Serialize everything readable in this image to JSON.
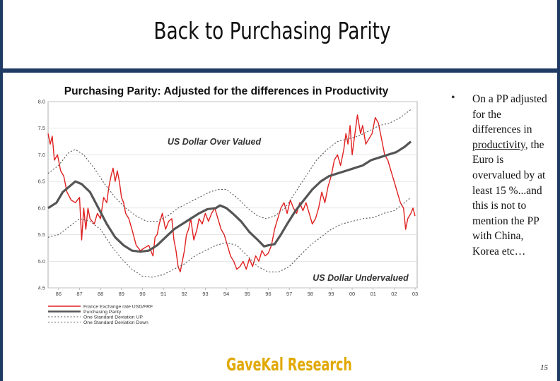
{
  "slide": {
    "title": "Back to Purchasing Parity",
    "bullet": "On a PP adjusted for the differences in productivity, the Euro is overvalued by at least 15 %...and this is not to mention the PP with China, Korea etc…",
    "bullet_underlined": "productivity,",
    "bullet_before": "On a PP adjusted for the differences in ",
    "bullet_after": " the Euro is overvalued by at least 15 %...and this is not to mention the PP with China, Korea etc…",
    "brand": "GaveKal Research",
    "page_number": "15"
  },
  "chart_data": {
    "type": "line",
    "title": "Purchasing Parity: Adjusted for the differences in  Productivity",
    "annotations": [
      "US Dollar Over Valued",
      "US Dollar Undervalued"
    ],
    "x_ticks": [
      "86",
      "87",
      "88",
      "89",
      "90",
      "91",
      "92",
      "93",
      "94",
      "95",
      "96",
      "97",
      "98",
      "99",
      "00",
      "01",
      "02",
      "03"
    ],
    "x_range": [
      1986.0,
      2003.6
    ],
    "left_axis": {
      "ticks": [
        "8.0",
        "7.5",
        "7.0",
        "6.5",
        "6.0",
        "5.5",
        "5.0",
        "4.5"
      ],
      "range": [
        4.5,
        8.0
      ]
    },
    "right_axis": {
      "ticks": [
        "10",
        "9",
        "8",
        "7",
        "6",
        "5",
        "4",
        "3",
        "2",
        "1",
        "0"
      ],
      "range": [
        0,
        10
      ]
    },
    "grid": "horizontal",
    "legend_position": "bottom-left",
    "series": [
      {
        "name": "France Exchange rate USD/FRF",
        "axis": "left",
        "color": "#e02020",
        "style": "solid",
        "x": [
          1986.0,
          1986.1,
          1986.2,
          1986.3,
          1986.45,
          1986.6,
          1986.75,
          1986.9,
          1987.1,
          1987.3,
          1987.5,
          1987.6,
          1987.7,
          1987.8,
          1987.9,
          1988.0,
          1988.2,
          1988.35,
          1988.5,
          1988.65,
          1988.8,
          1988.9,
          1989.0,
          1989.1,
          1989.2,
          1989.3,
          1989.4,
          1989.5,
          1989.6,
          1989.7,
          1989.85,
          1990.0,
          1990.2,
          1990.4,
          1990.6,
          1990.8,
          1991.0,
          1991.1,
          1991.2,
          1991.3,
          1991.45,
          1991.6,
          1991.75,
          1991.9,
          1992.0,
          1992.1,
          1992.2,
          1992.3,
          1992.5,
          1992.6,
          1992.7,
          1992.8,
          1992.95,
          1993.1,
          1993.2,
          1993.35,
          1993.5,
          1993.65,
          1993.8,
          1993.95,
          1994.1,
          1994.25,
          1994.4,
          1994.55,
          1994.7,
          1994.85,
          1995.0,
          1995.15,
          1995.3,
          1995.45,
          1995.6,
          1995.75,
          1995.9,
          1996.05,
          1996.2,
          1996.35,
          1996.5,
          1996.65,
          1996.8,
          1996.95,
          1997.1,
          1997.25,
          1997.4,
          1997.55,
          1997.7,
          1997.85,
          1998.0,
          1998.15,
          1998.3,
          1998.45,
          1998.6,
          1998.75,
          1998.9,
          1999.05,
          1999.2,
          1999.35,
          1999.5,
          1999.65,
          1999.8,
          1999.95,
          2000.1,
          2000.2,
          2000.3,
          2000.4,
          2000.5,
          2000.6,
          2000.75,
          2000.9,
          2001.0,
          2001.15,
          2001.3,
          2001.45,
          2001.6,
          2001.75,
          2001.9,
          2002.05,
          2002.2,
          2002.35,
          2002.5,
          2002.65,
          2002.8,
          2002.95,
          2003.05,
          2003.15,
          2003.3,
          2003.4,
          2003.5
        ],
        "y": [
          7.4,
          7.2,
          7.35,
          6.9,
          7.0,
          6.7,
          6.6,
          6.3,
          6.15,
          6.1,
          6.2,
          5.4,
          6.0,
          5.6,
          6.0,
          5.8,
          5.7,
          5.9,
          5.8,
          6.2,
          6.1,
          6.4,
          6.6,
          6.75,
          6.5,
          6.7,
          6.5,
          6.2,
          6.1,
          5.9,
          5.8,
          5.6,
          5.3,
          5.2,
          5.25,
          5.3,
          5.1,
          5.45,
          5.5,
          5.7,
          5.9,
          5.6,
          5.75,
          5.8,
          5.4,
          5.2,
          4.9,
          4.8,
          5.2,
          5.5,
          5.6,
          5.8,
          5.4,
          5.6,
          5.8,
          5.7,
          5.9,
          5.75,
          5.9,
          6.0,
          5.8,
          5.6,
          5.5,
          5.3,
          5.1,
          5.0,
          4.85,
          4.9,
          5.0,
          4.85,
          5.05,
          4.9,
          5.1,
          5.0,
          5.2,
          5.1,
          5.15,
          5.3,
          5.6,
          5.8,
          6.0,
          6.1,
          5.9,
          6.15,
          6.0,
          5.9,
          6.1,
          5.95,
          6.1,
          5.9,
          5.7,
          5.8,
          6.0,
          6.3,
          6.1,
          6.4,
          6.6,
          6.9,
          7.0,
          6.8,
          7.1,
          7.4,
          7.2,
          7.55,
          7.0,
          7.3,
          7.75,
          7.4,
          7.55,
          7.2,
          7.3,
          7.4,
          7.7,
          7.6,
          7.3,
          7.0,
          6.9,
          6.7,
          6.5,
          6.3,
          6.1,
          6.0,
          5.6,
          5.8,
          5.9,
          6.0,
          5.85
        ]
      },
      {
        "name": "Purchasing Parity",
        "axis": "left",
        "color": "#555555",
        "style": "thick",
        "x": [
          1986.0,
          1986.4,
          1986.7,
          1987.0,
          1987.3,
          1987.6,
          1988.0,
          1988.4,
          1988.8,
          1989.2,
          1989.6,
          1990.0,
          1990.4,
          1990.8,
          1991.2,
          1991.6,
          1992.0,
          1992.4,
          1992.8,
          1993.2,
          1993.6,
          1994.0,
          1994.2,
          1994.5,
          1994.8,
          1995.2,
          1995.6,
          1996.0,
          1996.3,
          1996.5,
          1996.8,
          1997.1,
          1997.4,
          1997.8,
          1998.2,
          1998.6,
          1999.0,
          1999.4,
          1999.8,
          2000.2,
          2000.6,
          2001.0,
          2001.4,
          2001.8,
          2002.2,
          2002.6,
          2003.0,
          2003.3
        ],
        "y": [
          6.0,
          6.1,
          6.3,
          6.4,
          6.5,
          6.45,
          6.3,
          6.0,
          5.7,
          5.45,
          5.3,
          5.2,
          5.18,
          5.2,
          5.3,
          5.45,
          5.6,
          5.7,
          5.8,
          5.9,
          5.98,
          6.0,
          6.05,
          6.0,
          5.9,
          5.75,
          5.55,
          5.4,
          5.28,
          5.3,
          5.32,
          5.5,
          5.7,
          5.95,
          6.15,
          6.35,
          6.5,
          6.6,
          6.65,
          6.7,
          6.75,
          6.8,
          6.9,
          6.95,
          7.0,
          7.05,
          7.15,
          7.25
        ]
      },
      {
        "name": "One Standard Deviation UP",
        "axis": "left",
        "color": "#555555",
        "style": "dotted",
        "x": [
          1986.0,
          1986.5,
          1987.0,
          1987.3,
          1987.7,
          1988.2,
          1988.7,
          1989.2,
          1989.7,
          1990.2,
          1990.7,
          1991.2,
          1991.7,
          1992.2,
          1992.7,
          1993.2,
          1993.7,
          1994.1,
          1994.5,
          1995.0,
          1995.5,
          1996.0,
          1996.4,
          1996.8,
          1997.3,
          1997.8,
          1998.3,
          1998.8,
          1999.3,
          1999.8,
          2000.3,
          2000.8,
          2001.3,
          2001.8,
          2002.3,
          2002.8,
          2003.3
        ],
        "y": [
          6.65,
          6.8,
          7.05,
          7.1,
          7.0,
          6.75,
          6.45,
          6.2,
          6.0,
          5.85,
          5.75,
          5.75,
          5.85,
          6.0,
          6.1,
          6.2,
          6.3,
          6.35,
          6.35,
          6.2,
          6.0,
          5.85,
          5.8,
          5.85,
          6.0,
          6.3,
          6.6,
          6.9,
          7.1,
          7.25,
          7.3,
          7.35,
          7.45,
          7.55,
          7.6,
          7.7,
          7.85
        ]
      },
      {
        "name": "One Standard Deviation Down",
        "axis": "left",
        "color": "#555555",
        "style": "dotted",
        "x": [
          1986.0,
          1986.5,
          1987.0,
          1987.5,
          1988.0,
          1988.5,
          1989.0,
          1989.5,
          1990.0,
          1990.5,
          1991.0,
          1991.5,
          1992.0,
          1992.5,
          1993.0,
          1993.5,
          1994.0,
          1994.5,
          1995.0,
          1995.5,
          1996.0,
          1996.5,
          1997.0,
          1997.5,
          1998.0,
          1998.5,
          1999.0,
          1999.5,
          2000.0,
          2000.5,
          2001.0,
          2001.5,
          2002.0,
          2002.5,
          2003.0,
          2003.3
        ],
        "y": [
          5.45,
          5.5,
          5.65,
          5.8,
          5.75,
          5.6,
          5.3,
          5.05,
          4.85,
          4.72,
          4.7,
          4.75,
          4.85,
          4.95,
          5.1,
          5.2,
          5.3,
          5.35,
          5.3,
          5.1,
          4.9,
          4.8,
          4.8,
          4.9,
          5.1,
          5.3,
          5.45,
          5.6,
          5.7,
          5.75,
          5.8,
          5.82,
          5.9,
          5.95,
          6.1,
          6.2
        ]
      }
    ]
  }
}
